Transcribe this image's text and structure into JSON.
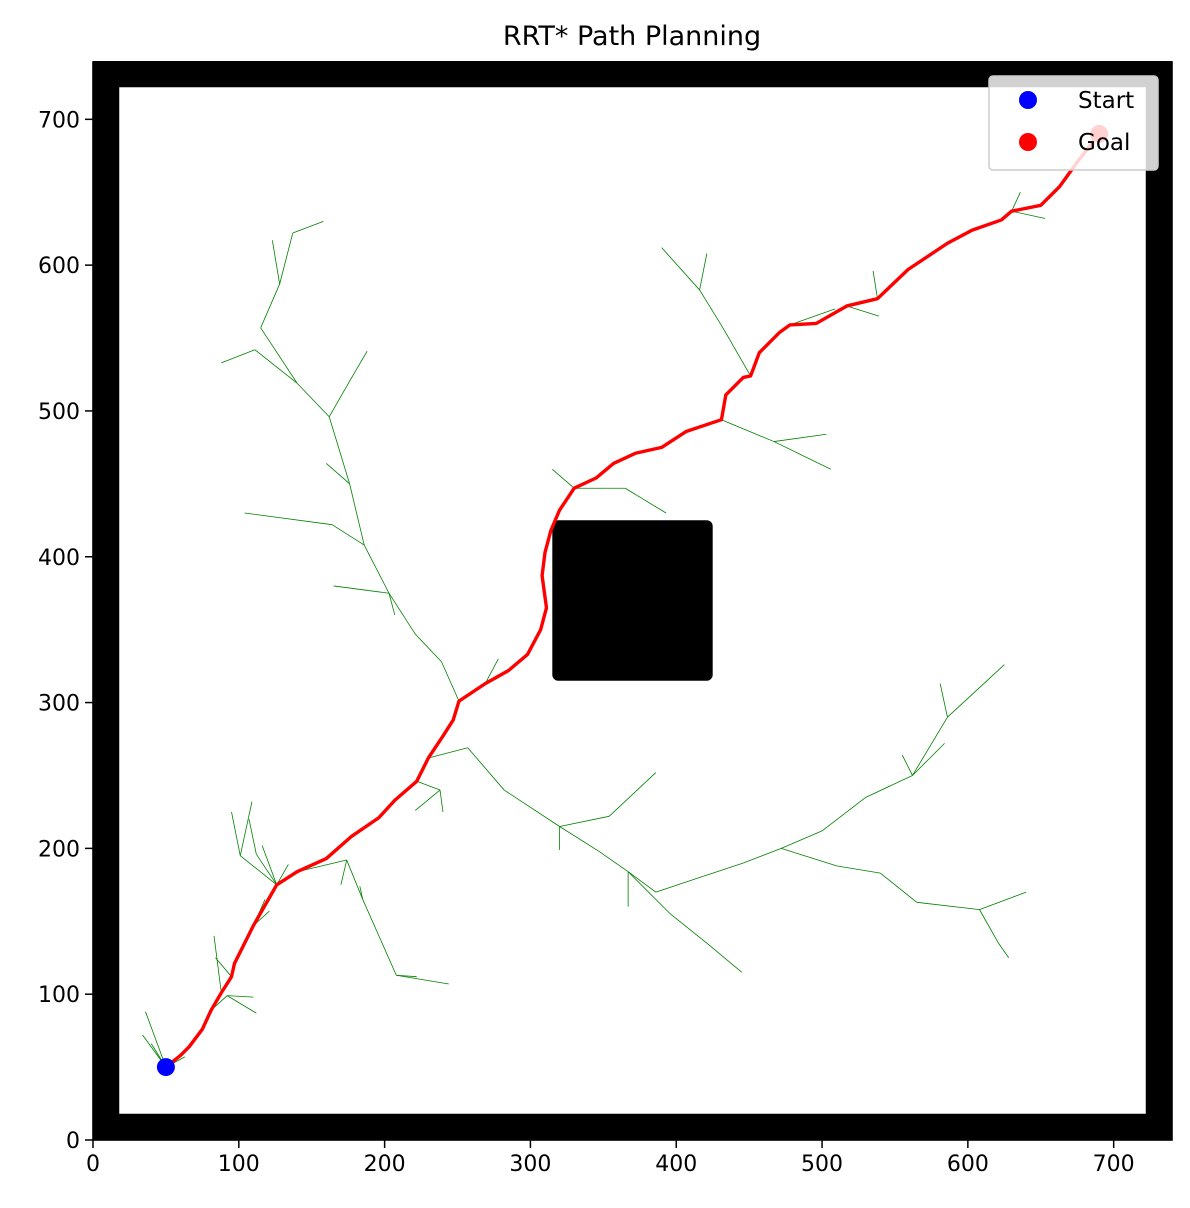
{
  "chart_data": {
    "type": "line",
    "title": "RRT* Path Planning",
    "xlabel": "",
    "ylabel": "",
    "xlim": [
      0,
      740
    ],
    "ylim": [
      0,
      740
    ],
    "xticks": [
      0,
      100,
      200,
      300,
      400,
      500,
      600,
      700
    ],
    "yticks": [
      0,
      100,
      200,
      300,
      400,
      500,
      600,
      700
    ],
    "grid": false,
    "legend_position": "top-right",
    "colors": {
      "tree": "#008000",
      "path": "#ff0000",
      "start": "#0000ff",
      "goal": "#ff0000",
      "obstacle": "#000000"
    },
    "obstacles": [
      {
        "name": "boundary",
        "x": 0,
        "y": 0,
        "width": 740,
        "height": 740,
        "inner_x": 18,
        "inner_y": 18,
        "inner_width": 704,
        "inner_height": 704
      },
      {
        "name": "square",
        "x": 315,
        "y": 315,
        "width": 110,
        "height": 110
      }
    ],
    "start": {
      "name": "Start",
      "x": 50,
      "y": 50
    },
    "goal": {
      "name": "Goal",
      "x": 690,
      "y": 690
    },
    "path": {
      "x": [
        50,
        60,
        66,
        75,
        81,
        88,
        95,
        97,
        110,
        126,
        140,
        160,
        177,
        196,
        207,
        222,
        230,
        240,
        247,
        251,
        269,
        285,
        298,
        307,
        311,
        308,
        310,
        314,
        320,
        330,
        345,
        357,
        372,
        390,
        407,
        431,
        434,
        446,
        451,
        457,
        471,
        478,
        496,
        517,
        538,
        559,
        586,
        603,
        623,
        630,
        650,
        663,
        676,
        690
      ],
      "y": [
        50,
        58,
        64,
        76,
        89,
        101,
        112,
        121,
        147,
        175,
        184,
        193,
        208,
        221,
        233,
        246,
        262,
        277,
        288,
        301,
        313,
        322,
        333,
        350,
        365,
        387,
        403,
        418,
        432,
        447,
        454,
        464,
        471,
        475,
        486,
        494,
        511,
        523,
        524,
        540,
        554,
        559,
        560,
        572,
        577,
        597,
        615,
        624,
        631,
        637,
        641,
        654,
        672,
        690
      ]
    },
    "tree": [
      {
        "x": [
          50,
          40
        ],
        "y": [
          50,
          66
        ]
      },
      {
        "x": [
          50,
          34
        ],
        "y": [
          50,
          72
        ]
      },
      {
        "x": [
          50,
          36
        ],
        "y": [
          50,
          88
        ]
      },
      {
        "x": [
          50,
          63
        ],
        "y": [
          50,
          57
        ]
      },
      {
        "x": [
          81,
          92
        ],
        "y": [
          89,
          99
        ]
      },
      {
        "x": [
          92,
          112
        ],
        "y": [
          99,
          87
        ]
      },
      {
        "x": [
          92,
          110
        ],
        "y": [
          99,
          98
        ]
      },
      {
        "x": [
          88,
          83
        ],
        "y": [
          101,
          140
        ]
      },
      {
        "x": [
          95,
          84
        ],
        "y": [
          112,
          125
        ]
      },
      {
        "x": [
          110,
          121
        ],
        "y": [
          147,
          157
        ]
      },
      {
        "x": [
          110,
          118
        ],
        "y": [
          147,
          165
        ]
      },
      {
        "x": [
          126,
          101
        ],
        "y": [
          175,
          195
        ]
      },
      {
        "x": [
          101,
          95
        ],
        "y": [
          195,
          225
        ]
      },
      {
        "x": [
          101,
          109
        ],
        "y": [
          195,
          232
        ]
      },
      {
        "x": [
          126,
          112
        ],
        "y": [
          175,
          196
        ]
      },
      {
        "x": [
          112,
          107
        ],
        "y": [
          196,
          220
        ]
      },
      {
        "x": [
          126,
          116
        ],
        "y": [
          175,
          202
        ]
      },
      {
        "x": [
          126,
          134
        ],
        "y": [
          175,
          189
        ]
      },
      {
        "x": [
          140,
          174
        ],
        "y": [
          184,
          192
        ]
      },
      {
        "x": [
          174,
          185
        ],
        "y": [
          192,
          165
        ]
      },
      {
        "x": [
          185,
          208
        ],
        "y": [
          165,
          113
        ]
      },
      {
        "x": [
          208,
          244
        ],
        "y": [
          113,
          107
        ]
      },
      {
        "x": [
          208,
          222
        ],
        "y": [
          113,
          112
        ]
      },
      {
        "x": [
          185,
          183
        ],
        "y": [
          165,
          174
        ]
      },
      {
        "x": [
          174,
          170
        ],
        "y": [
          192,
          175
        ]
      },
      {
        "x": [
          222,
          238
        ],
        "y": [
          246,
          240
        ]
      },
      {
        "x": [
          238,
          240
        ],
        "y": [
          240,
          225
        ]
      },
      {
        "x": [
          238,
          221
        ],
        "y": [
          240,
          226
        ]
      },
      {
        "x": [
          230,
          257
        ],
        "y": [
          262,
          269
        ]
      },
      {
        "x": [
          257,
          282
        ],
        "y": [
          269,
          240
        ]
      },
      {
        "x": [
          282,
          320
        ],
        "y": [
          240,
          215
        ]
      },
      {
        "x": [
          320,
          347
        ],
        "y": [
          215,
          198
        ]
      },
      {
        "x": [
          347,
          367
        ],
        "y": [
          198,
          184
        ]
      },
      {
        "x": [
          367,
          386
        ],
        "y": [
          184,
          170
        ]
      },
      {
        "x": [
          386,
          416
        ],
        "y": [
          170,
          180
        ]
      },
      {
        "x": [
          416,
          446
        ],
        "y": [
          180,
          190
        ]
      },
      {
        "x": [
          446,
          472
        ],
        "y": [
          190,
          200
        ]
      },
      {
        "x": [
          472,
          500
        ],
        "y": [
          200,
          212
        ]
      },
      {
        "x": [
          500,
          530
        ],
        "y": [
          212,
          235
        ]
      },
      {
        "x": [
          530,
          562
        ],
        "y": [
          235,
          250
        ]
      },
      {
        "x": [
          562,
          586
        ],
        "y": [
          250,
          290
        ]
      },
      {
        "x": [
          586,
          625
        ],
        "y": [
          290,
          326
        ]
      },
      {
        "x": [
          562,
          584
        ],
        "y": [
          250,
          272
        ]
      },
      {
        "x": [
          562,
          555
        ],
        "y": [
          250,
          264
        ]
      },
      {
        "x": [
          586,
          581
        ],
        "y": [
          290,
          313
        ]
      },
      {
        "x": [
          367,
          396
        ],
        "y": [
          184,
          155
        ]
      },
      {
        "x": [
          396,
          421
        ],
        "y": [
          155,
          135
        ]
      },
      {
        "x": [
          421,
          445
        ],
        "y": [
          135,
          115
        ]
      },
      {
        "x": [
          367,
          367
        ],
        "y": [
          184,
          160
        ]
      },
      {
        "x": [
          320,
          354
        ],
        "y": [
          215,
          222
        ]
      },
      {
        "x": [
          354,
          386
        ],
        "y": [
          222,
          252
        ]
      },
      {
        "x": [
          320,
          320
        ],
        "y": [
          215,
          199
        ]
      },
      {
        "x": [
          472,
          510
        ],
        "y": [
          200,
          188
        ]
      },
      {
        "x": [
          510,
          540
        ],
        "y": [
          188,
          183
        ]
      },
      {
        "x": [
          540,
          565
        ],
        "y": [
          183,
          163
        ]
      },
      {
        "x": [
          565,
          608
        ],
        "y": [
          163,
          158
        ]
      },
      {
        "x": [
          608,
          640
        ],
        "y": [
          158,
          170
        ]
      },
      {
        "x": [
          608,
          621
        ],
        "y": [
          158,
          135
        ]
      },
      {
        "x": [
          621,
          628
        ],
        "y": [
          135,
          125
        ]
      },
      {
        "x": [
          251,
          239
        ],
        "y": [
          301,
          328
        ]
      },
      {
        "x": [
          239,
          221
        ],
        "y": [
          328,
          347
        ]
      },
      {
        "x": [
          221,
          203
        ],
        "y": [
          347,
          375
        ]
      },
      {
        "x": [
          203,
          186
        ],
        "y": [
          375,
          408
        ]
      },
      {
        "x": [
          186,
          164
        ],
        "y": [
          408,
          422
        ]
      },
      {
        "x": [
          164,
          104
        ],
        "y": [
          422,
          430
        ]
      },
      {
        "x": [
          186,
          176
        ],
        "y": [
          408,
          450
        ]
      },
      {
        "x": [
          176,
          162
        ],
        "y": [
          450,
          496
        ]
      },
      {
        "x": [
          162,
          140
        ],
        "y": [
          496,
          519
        ]
      },
      {
        "x": [
          140,
          111
        ],
        "y": [
          519,
          542
        ]
      },
      {
        "x": [
          111,
          88
        ],
        "y": [
          542,
          533
        ]
      },
      {
        "x": [
          140,
          115
        ],
        "y": [
          519,
          557
        ]
      },
      {
        "x": [
          115,
          128
        ],
        "y": [
          557,
          587
        ]
      },
      {
        "x": [
          128,
          123
        ],
        "y": [
          587,
          617
        ]
      },
      {
        "x": [
          128,
          137
        ],
        "y": [
          587,
          622
        ]
      },
      {
        "x": [
          137,
          158
        ],
        "y": [
          622,
          630
        ]
      },
      {
        "x": [
          162,
          174
        ],
        "y": [
          496,
          517
        ]
      },
      {
        "x": [
          174,
          188
        ],
        "y": [
          517,
          541
        ]
      },
      {
        "x": [
          176,
          160
        ],
        "y": [
          450,
          464
        ]
      },
      {
        "x": [
          203,
          165
        ],
        "y": [
          375,
          380
        ]
      },
      {
        "x": [
          203,
          207
        ],
        "y": [
          375,
          360
        ]
      },
      {
        "x": [
          269,
          278
        ],
        "y": [
          313,
          330
        ]
      },
      {
        "x": [
          330,
          365
        ],
        "y": [
          447,
          447
        ]
      },
      {
        "x": [
          365,
          393
        ],
        "y": [
          447,
          430
        ]
      },
      {
        "x": [
          330,
          315
        ],
        "y": [
          447,
          460
        ]
      },
      {
        "x": [
          431,
          467
        ],
        "y": [
          494,
          479
        ]
      },
      {
        "x": [
          467,
          503
        ],
        "y": [
          479,
          484
        ]
      },
      {
        "x": [
          467,
          506
        ],
        "y": [
          479,
          460
        ]
      },
      {
        "x": [
          451,
          432
        ],
        "y": [
          524,
          557
        ]
      },
      {
        "x": [
          432,
          416
        ],
        "y": [
          557,
          583
        ]
      },
      {
        "x": [
          416,
          390
        ],
        "y": [
          583,
          612
        ]
      },
      {
        "x": [
          416,
          421
        ],
        "y": [
          583,
          608
        ]
      },
      {
        "x": [
          478,
          509
        ],
        "y": [
          559,
          570
        ]
      },
      {
        "x": [
          517,
          539
        ],
        "y": [
          572,
          565
        ]
      },
      {
        "x": [
          538,
          535
        ],
        "y": [
          577,
          596
        ]
      },
      {
        "x": [
          586,
          603
        ],
        "y": [
          615,
          625
        ]
      },
      {
        "x": [
          630,
          636
        ],
        "y": [
          637,
          650
        ]
      },
      {
        "x": [
          630,
          653
        ],
        "y": [
          637,
          632
        ]
      }
    ]
  },
  "legend": {
    "start_label": "Start",
    "goal_label": "Goal"
  }
}
